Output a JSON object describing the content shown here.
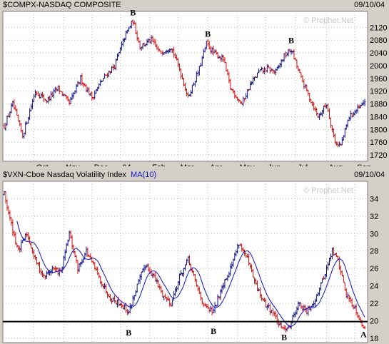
{
  "chart_data": [
    {
      "type": "ohlc",
      "title": "$COMPX-NASDAQ COMPOSITE",
      "date": "09/10/04",
      "watermark": "© Prophet.Net",
      "ylim": [
        1700,
        2170
      ],
      "y_ticks": [
        1720,
        1760,
        1800,
        1840,
        1880,
        1920,
        1960,
        2000,
        2040,
        2080,
        2120
      ],
      "x_ticks": [
        {
          "label": "Oct",
          "day": 21
        },
        {
          "label": "Nov",
          "day": 42
        },
        {
          "label": "Dec",
          "day": 62
        },
        {
          "label": "04",
          "day": 82
        },
        {
          "label": "Feb",
          "day": 103
        },
        {
          "label": "Mar",
          "day": 123
        },
        {
          "label": "Apr",
          "day": 144
        },
        {
          "label": "May",
          "day": 165
        },
        {
          "label": "Jun",
          "day": 185
        },
        {
          "label": "Jul",
          "day": 206
        },
        {
          "label": "Aug",
          "day": 228
        },
        {
          "label": "Sep",
          "day": 248
        }
      ],
      "n_days": 256,
      "anchors": [
        [
          0,
          1810
        ],
        [
          6,
          1880
        ],
        [
          13,
          1780
        ],
        [
          22,
          1920
        ],
        [
          30,
          1890
        ],
        [
          38,
          1930
        ],
        [
          46,
          1880
        ],
        [
          54,
          1960
        ],
        [
          62,
          1900
        ],
        [
          70,
          1960
        ],
        [
          78,
          2000
        ],
        [
          86,
          2100
        ],
        [
          91,
          2140
        ],
        [
          96,
          2060
        ],
        [
          104,
          2080
        ],
        [
          110,
          2040
        ],
        [
          118,
          2060
        ],
        [
          124,
          1990
        ],
        [
          130,
          1900
        ],
        [
          138,
          1990
        ],
        [
          143,
          2070
        ],
        [
          148,
          2040
        ],
        [
          155,
          2020
        ],
        [
          160,
          1930
        ],
        [
          168,
          1880
        ],
        [
          174,
          1940
        ],
        [
          180,
          1980
        ],
        [
          186,
          1990
        ],
        [
          192,
          1980
        ],
        [
          198,
          2030
        ],
        [
          203,
          2050
        ],
        [
          210,
          1960
        ],
        [
          216,
          1900
        ],
        [
          222,
          1840
        ],
        [
          228,
          1880
        ],
        [
          234,
          1760
        ],
        [
          238,
          1750
        ],
        [
          244,
          1840
        ],
        [
          252,
          1870
        ],
        [
          255,
          1890
        ]
      ],
      "annotations": [
        {
          "label": "B",
          "day": 91,
          "value": 2158
        },
        {
          "label": "B",
          "day": 144,
          "value": 2090
        },
        {
          "label": "B",
          "day": 203,
          "value": 2070
        }
      ]
    },
    {
      "type": "ohlc",
      "title": "$VXN-Cboe Nasdaq Volatility Index",
      "ma_label": "MA(10)",
      "date": "09/10/04",
      "watermark": "© Prophet.Net",
      "ylim": [
        17.5,
        36
      ],
      "y_ticks": [
        18,
        20,
        22,
        24,
        26,
        28,
        30,
        32,
        34
      ],
      "x_ticks": [
        {
          "label": "Oct",
          "day": 21
        },
        {
          "label": "Nov",
          "day": 42
        },
        {
          "label": "Dec",
          "day": 62
        },
        {
          "label": "04",
          "day": 82
        },
        {
          "label": "Feb",
          "day": 103
        },
        {
          "label": "Mar",
          "day": 123
        },
        {
          "label": "Apr",
          "day": 144
        },
        {
          "label": "May",
          "day": 165
        },
        {
          "label": "Jun",
          "day": 185
        },
        {
          "label": "Jul",
          "day": 206
        },
        {
          "label": "Aug",
          "day": 228
        },
        {
          "label": "Sep",
          "day": 248
        }
      ],
      "n_days": 256,
      "anchors": [
        [
          0,
          34.5
        ],
        [
          5,
          31
        ],
        [
          10,
          28
        ],
        [
          16,
          30
        ],
        [
          22,
          27
        ],
        [
          28,
          25
        ],
        [
          34,
          26
        ],
        [
          40,
          25.5
        ],
        [
          46,
          30
        ],
        [
          52,
          26
        ],
        [
          58,
          28
        ],
        [
          64,
          26
        ],
        [
          70,
          24
        ],
        [
          76,
          22.5
        ],
        [
          82,
          22
        ],
        [
          88,
          21
        ],
        [
          94,
          24
        ],
        [
          100,
          26.5
        ],
        [
          106,
          25
        ],
        [
          112,
          23
        ],
        [
          118,
          22
        ],
        [
          124,
          25
        ],
        [
          130,
          27
        ],
        [
          136,
          24
        ],
        [
          142,
          21.5
        ],
        [
          148,
          21
        ],
        [
          154,
          24
        ],
        [
          160,
          26
        ],
        [
          166,
          29
        ],
        [
          172,
          27
        ],
        [
          178,
          24
        ],
        [
          184,
          22
        ],
        [
          190,
          21
        ],
        [
          196,
          19
        ],
        [
          202,
          19.5
        ],
        [
          208,
          22
        ],
        [
          214,
          21
        ],
        [
          220,
          22.5
        ],
        [
          226,
          25
        ],
        [
          232,
          28
        ],
        [
          236,
          27
        ],
        [
          242,
          23
        ],
        [
          248,
          21.5
        ],
        [
          252,
          20
        ],
        [
          255,
          19
        ]
      ],
      "support_level": 19.9,
      "annotations": [
        {
          "label": "B",
          "day": 88,
          "value": 18.3
        },
        {
          "label": "B",
          "day": 148,
          "value": 18.5
        },
        {
          "label": "B",
          "day": 198,
          "value": 17.8
        },
        {
          "label": "A",
          "day": 254,
          "value": 18.1
        }
      ]
    }
  ],
  "colors": {
    "up": "#101080",
    "down": "#d01010",
    "ma": "#1010c0",
    "plot_bg": "#ffffff",
    "frame": "#d4d0c8"
  }
}
